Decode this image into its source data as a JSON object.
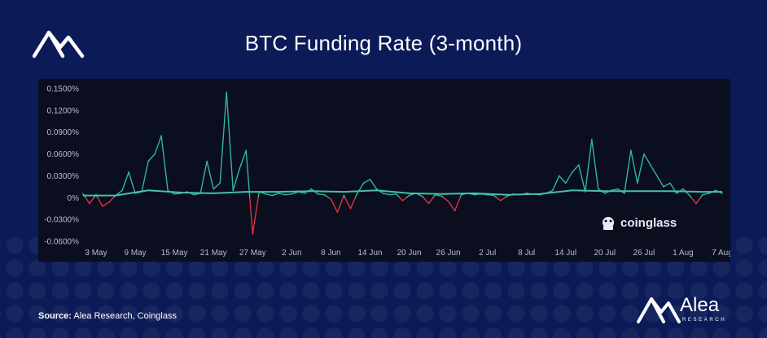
{
  "header": {
    "title": "BTC Funding Rate (3-month)"
  },
  "footer": {
    "source_label": "Source:",
    "source_text": "Alea Research, Coinglass",
    "brand_name": "Alea",
    "brand_sub": "RESEARCH"
  },
  "icons": {
    "top_logo": "alea-logo-icon",
    "brand_logo": "alea-logo-icon",
    "watermark": "coinglass-logo-icon"
  },
  "colors": {
    "background": "#0c1a57",
    "panel": "#0a0e1e",
    "positive": "#2fb89a",
    "negative": "#e0323f",
    "ma_line": "#48bfa7"
  },
  "chart_data": {
    "type": "line",
    "title": "BTC Funding Rate (3-month)",
    "xlabel": "",
    "ylabel": "",
    "y_unit": "%",
    "ylim": [
      -0.06,
      0.15
    ],
    "grid": false,
    "legend": "none",
    "watermark": "coinglass",
    "x_start": "2024-05-01",
    "x_end": "2024-08-07",
    "x_tick_labels": [
      "3 May",
      "9 May",
      "15 May",
      "21 May",
      "27 May",
      "2 Jun",
      "8 Jun",
      "14 Jun",
      "20 Jun",
      "26 Jun",
      "2 Jul",
      "8 Jul",
      "14 Jul",
      "20 Jul",
      "26 Jul",
      "1 Aug",
      "7 Aug"
    ],
    "y_tick_labels": [
      "0.1500%",
      "0.1200%",
      "0.0900%",
      "0.0600%",
      "0.0300%",
      "0%",
      "-0.0300%",
      "-0.0600%"
    ],
    "y_tick_values": [
      0.15,
      0.12,
      0.09,
      0.06,
      0.03,
      0,
      -0.03,
      -0.06
    ],
    "series": [
      {
        "color_positive": "#2fb89a",
        "color_negative": "#e0323f",
        "points": [
          [
            "2024-05-01",
            0.005
          ],
          [
            "2024-05-02",
            -0.008
          ],
          [
            "2024-05-03",
            0.004
          ],
          [
            "2024-05-04",
            -0.012
          ],
          [
            "2024-05-05",
            -0.006
          ],
          [
            "2024-05-06",
            0.003
          ],
          [
            "2024-05-07",
            0.01
          ],
          [
            "2024-05-08",
            0.035
          ],
          [
            "2024-05-09",
            0.006
          ],
          [
            "2024-05-10",
            0.008
          ],
          [
            "2024-05-11",
            0.05
          ],
          [
            "2024-05-12",
            0.06
          ],
          [
            "2024-05-13",
            0.085
          ],
          [
            "2024-05-14",
            0.01
          ],
          [
            "2024-05-15",
            0.005
          ],
          [
            "2024-05-16",
            0.006
          ],
          [
            "2024-05-17",
            0.008
          ],
          [
            "2024-05-18",
            0.004
          ],
          [
            "2024-05-19",
            0.006
          ],
          [
            "2024-05-20",
            0.05
          ],
          [
            "2024-05-21",
            0.012
          ],
          [
            "2024-05-22",
            0.02
          ],
          [
            "2024-05-23",
            0.145
          ],
          [
            "2024-05-24",
            0.01
          ],
          [
            "2024-05-25",
            0.04
          ],
          [
            "2024-05-26",
            0.065
          ],
          [
            "2024-05-27",
            -0.05
          ],
          [
            "2024-05-28",
            0.008
          ],
          [
            "2024-05-29",
            0.005
          ],
          [
            "2024-05-30",
            0.003
          ],
          [
            "2024-05-31",
            0.006
          ],
          [
            "2024-06-01",
            0.004
          ],
          [
            "2024-06-02",
            0.005
          ],
          [
            "2024-06-03",
            0.008
          ],
          [
            "2024-06-04",
            0.006
          ],
          [
            "2024-06-05",
            0.012
          ],
          [
            "2024-06-06",
            0.005
          ],
          [
            "2024-06-07",
            0.004
          ],
          [
            "2024-06-08",
            -0.002
          ],
          [
            "2024-06-09",
            -0.02
          ],
          [
            "2024-06-10",
            0.003
          ],
          [
            "2024-06-11",
            -0.015
          ],
          [
            "2024-06-12",
            0.005
          ],
          [
            "2024-06-13",
            0.02
          ],
          [
            "2024-06-14",
            0.025
          ],
          [
            "2024-06-15",
            0.012
          ],
          [
            "2024-06-16",
            0.006
          ],
          [
            "2024-06-17",
            0.004
          ],
          [
            "2024-06-18",
            0.005
          ],
          [
            "2024-06-19",
            -0.004
          ],
          [
            "2024-06-20",
            0.003
          ],
          [
            "2024-06-21",
            0.006
          ],
          [
            "2024-06-22",
            0.002
          ],
          [
            "2024-06-23",
            -0.008
          ],
          [
            "2024-06-24",
            0.004
          ],
          [
            "2024-06-25",
            0.002
          ],
          [
            "2024-06-26",
            -0.005
          ],
          [
            "2024-06-27",
            -0.018
          ],
          [
            "2024-06-28",
            0.004
          ],
          [
            "2024-06-29",
            0.006
          ],
          [
            "2024-06-30",
            0.004
          ],
          [
            "2024-07-01",
            0.005
          ],
          [
            "2024-07-02",
            0.004
          ],
          [
            "2024-07-03",
            0.003
          ],
          [
            "2024-07-04",
            -0.004
          ],
          [
            "2024-07-05",
            0.002
          ],
          [
            "2024-07-06",
            0.005
          ],
          [
            "2024-07-07",
            0.004
          ],
          [
            "2024-07-08",
            0.006
          ],
          [
            "2024-07-09",
            0.005
          ],
          [
            "2024-07-10",
            0.004
          ],
          [
            "2024-07-11",
            0.006
          ],
          [
            "2024-07-12",
            0.01
          ],
          [
            "2024-07-13",
            0.03
          ],
          [
            "2024-07-14",
            0.02
          ],
          [
            "2024-07-15",
            0.035
          ],
          [
            "2024-07-16",
            0.045
          ],
          [
            "2024-07-17",
            0.008
          ],
          [
            "2024-07-18",
            0.08
          ],
          [
            "2024-07-19",
            0.012
          ],
          [
            "2024-07-20",
            0.006
          ],
          [
            "2024-07-21",
            0.01
          ],
          [
            "2024-07-22",
            0.012
          ],
          [
            "2024-07-23",
            0.006
          ],
          [
            "2024-07-24",
            0.065
          ],
          [
            "2024-07-25",
            0.02
          ],
          [
            "2024-07-26",
            0.06
          ],
          [
            "2024-07-27",
            0.045
          ],
          [
            "2024-07-28",
            0.03
          ],
          [
            "2024-07-29",
            0.015
          ],
          [
            "2024-07-30",
            0.02
          ],
          [
            "2024-07-31",
            0.006
          ],
          [
            "2024-08-01",
            0.012
          ],
          [
            "2024-08-02",
            0.003
          ],
          [
            "2024-08-03",
            -0.008
          ],
          [
            "2024-08-04",
            0.004
          ],
          [
            "2024-08-05",
            0.006
          ],
          [
            "2024-08-06",
            0.01
          ],
          [
            "2024-08-07",
            0.006
          ]
        ]
      },
      {
        "color": "#48bfa7",
        "points": [
          [
            "2024-05-01",
            0.003
          ],
          [
            "2024-05-06",
            0.003
          ],
          [
            "2024-05-11",
            0.01
          ],
          [
            "2024-05-16",
            0.007
          ],
          [
            "2024-05-21",
            0.006
          ],
          [
            "2024-05-26",
            0.008
          ],
          [
            "2024-05-31",
            0.008
          ],
          [
            "2024-06-05",
            0.009
          ],
          [
            "2024-06-10",
            0.008
          ],
          [
            "2024-06-15",
            0.01
          ],
          [
            "2024-06-20",
            0.006
          ],
          [
            "2024-06-25",
            0.005
          ],
          [
            "2024-06-30",
            0.006
          ],
          [
            "2024-07-05",
            0.004
          ],
          [
            "2024-07-10",
            0.005
          ],
          [
            "2024-07-15",
            0.01
          ],
          [
            "2024-07-20",
            0.009
          ],
          [
            "2024-07-25",
            0.009
          ],
          [
            "2024-07-30",
            0.009
          ],
          [
            "2024-08-04",
            0.008
          ],
          [
            "2024-08-07",
            0.008
          ]
        ]
      }
    ]
  }
}
